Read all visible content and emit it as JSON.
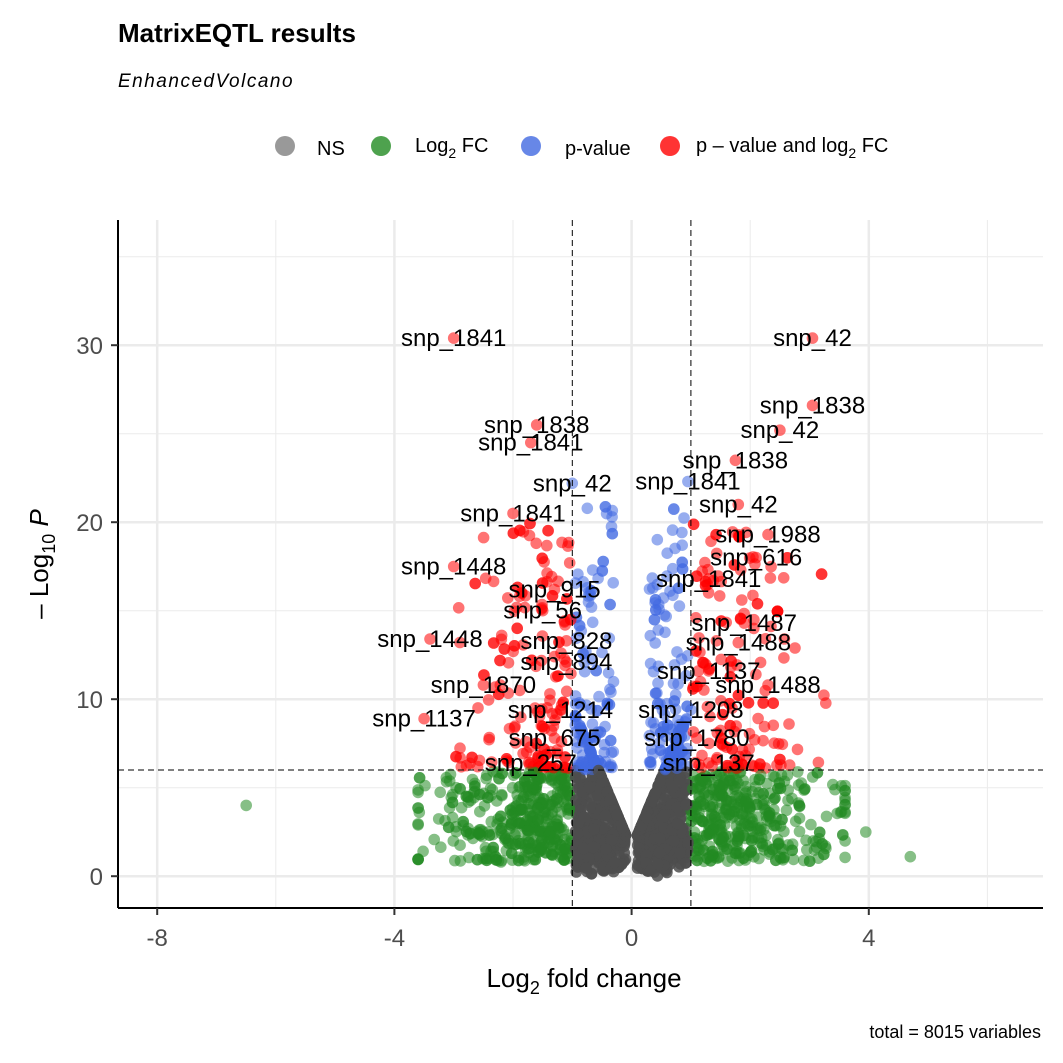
{
  "title": "MatrixEQTL results",
  "subtitle": "EnhancedVolcano",
  "caption": "total = 8015 variables",
  "legend": [
    {
      "key": "ns",
      "label": "NS",
      "color": "#808080"
    },
    {
      "key": "fc",
      "label": "Log",
      "sub": "2",
      "suffix": " FC",
      "color": "#228B22"
    },
    {
      "key": "p",
      "label": "p-value",
      "color": "#4169E1"
    },
    {
      "key": "pfc",
      "label": "p – value and log",
      "sub": "2",
      "suffix": " FC",
      "color": "#FF0000"
    }
  ],
  "colors": {
    "NS": "#4d4d4d",
    "FC": "#228B22",
    "P": "#4169E1",
    "P_FC": "#FF0000"
  },
  "chart_data": {
    "type": "scatter",
    "title": "MatrixEQTL results",
    "subtitle": "EnhancedVolcano",
    "xlabel": "Log2 fold change",
    "ylabel": "-Log10 P",
    "xlim": [
      -8.3,
      6.9
    ],
    "ylim": [
      -1.8,
      37.4
    ],
    "x_ticks": [
      "-8",
      "-4",
      "0",
      "4"
    ],
    "y_ticks": [
      "0",
      "10",
      "20",
      "30"
    ],
    "fc_cutoff": 1,
    "p_cutoff_log10": 6,
    "total_points": 8015,
    "highlighted": [
      {
        "label": "snp_1841",
        "x": -3.0,
        "y": 30.4
      },
      {
        "label": "snp_42",
        "x": 3.05,
        "y": 30.4
      },
      {
        "label": "snp_1838",
        "x": -1.6,
        "y": 25.5
      },
      {
        "label": "snp_1838",
        "x": 3.05,
        "y": 26.6
      },
      {
        "label": "snp_1841",
        "x": -1.7,
        "y": 24.5
      },
      {
        "label": "snp_42",
        "x": 2.5,
        "y": 25.2
      },
      {
        "label": "snp_42",
        "x": -1.0,
        "y": 22.2
      },
      {
        "label": "snp_1838",
        "x": 1.75,
        "y": 23.5
      },
      {
        "label": "snp_1841",
        "x": -2.0,
        "y": 20.5
      },
      {
        "label": "snp_1841",
        "x": 0.95,
        "y": 22.3
      },
      {
        "label": "snp_42",
        "x": 1.8,
        "y": 21.0
      },
      {
        "label": "snp_1988",
        "x": 2.3,
        "y": 19.3
      },
      {
        "label": "snp_616",
        "x": 2.1,
        "y": 18.0
      },
      {
        "label": "snp_1448",
        "x": -3.0,
        "y": 17.5
      },
      {
        "label": "snp_915",
        "x": -1.3,
        "y": 16.2
      },
      {
        "label": "snp_1841",
        "x": 1.3,
        "y": 16.8
      },
      {
        "label": "snp_56",
        "x": -1.5,
        "y": 15.0
      },
      {
        "label": "snp_1487",
        "x": 1.9,
        "y": 14.3
      },
      {
        "label": "snp_1448",
        "x": -3.4,
        "y": 13.4
      },
      {
        "label": "snp_828",
        "x": -1.1,
        "y": 13.3
      },
      {
        "label": "snp_1488",
        "x": 1.8,
        "y": 13.2
      },
      {
        "label": "snp_894",
        "x": -1.1,
        "y": 12.1
      },
      {
        "label": "snp_1137",
        "x": 1.3,
        "y": 11.6
      },
      {
        "label": "snp_1870",
        "x": -2.5,
        "y": 10.8
      },
      {
        "label": "snp_1488",
        "x": 2.3,
        "y": 10.8
      },
      {
        "label": "snp_1137",
        "x": -3.5,
        "y": 8.9
      },
      {
        "label": "snp_1214",
        "x": -1.2,
        "y": 9.4
      },
      {
        "label": "snp_1208",
        "x": 1.0,
        "y": 9.4
      },
      {
        "label": "snp_675",
        "x": -1.3,
        "y": 7.8
      },
      {
        "label": "snp_1780",
        "x": 1.1,
        "y": 7.8
      },
      {
        "label": "snp_257",
        "x": -1.7,
        "y": 6.4
      },
      {
        "label": "snp_137",
        "x": 1.3,
        "y": 6.4
      }
    ],
    "outliers": [
      {
        "x": -6.5,
        "y": 4.0
      },
      {
        "x": 4.7,
        "y": 1.1
      },
      {
        "x": 3.95,
        "y": 2.5
      }
    ]
  }
}
